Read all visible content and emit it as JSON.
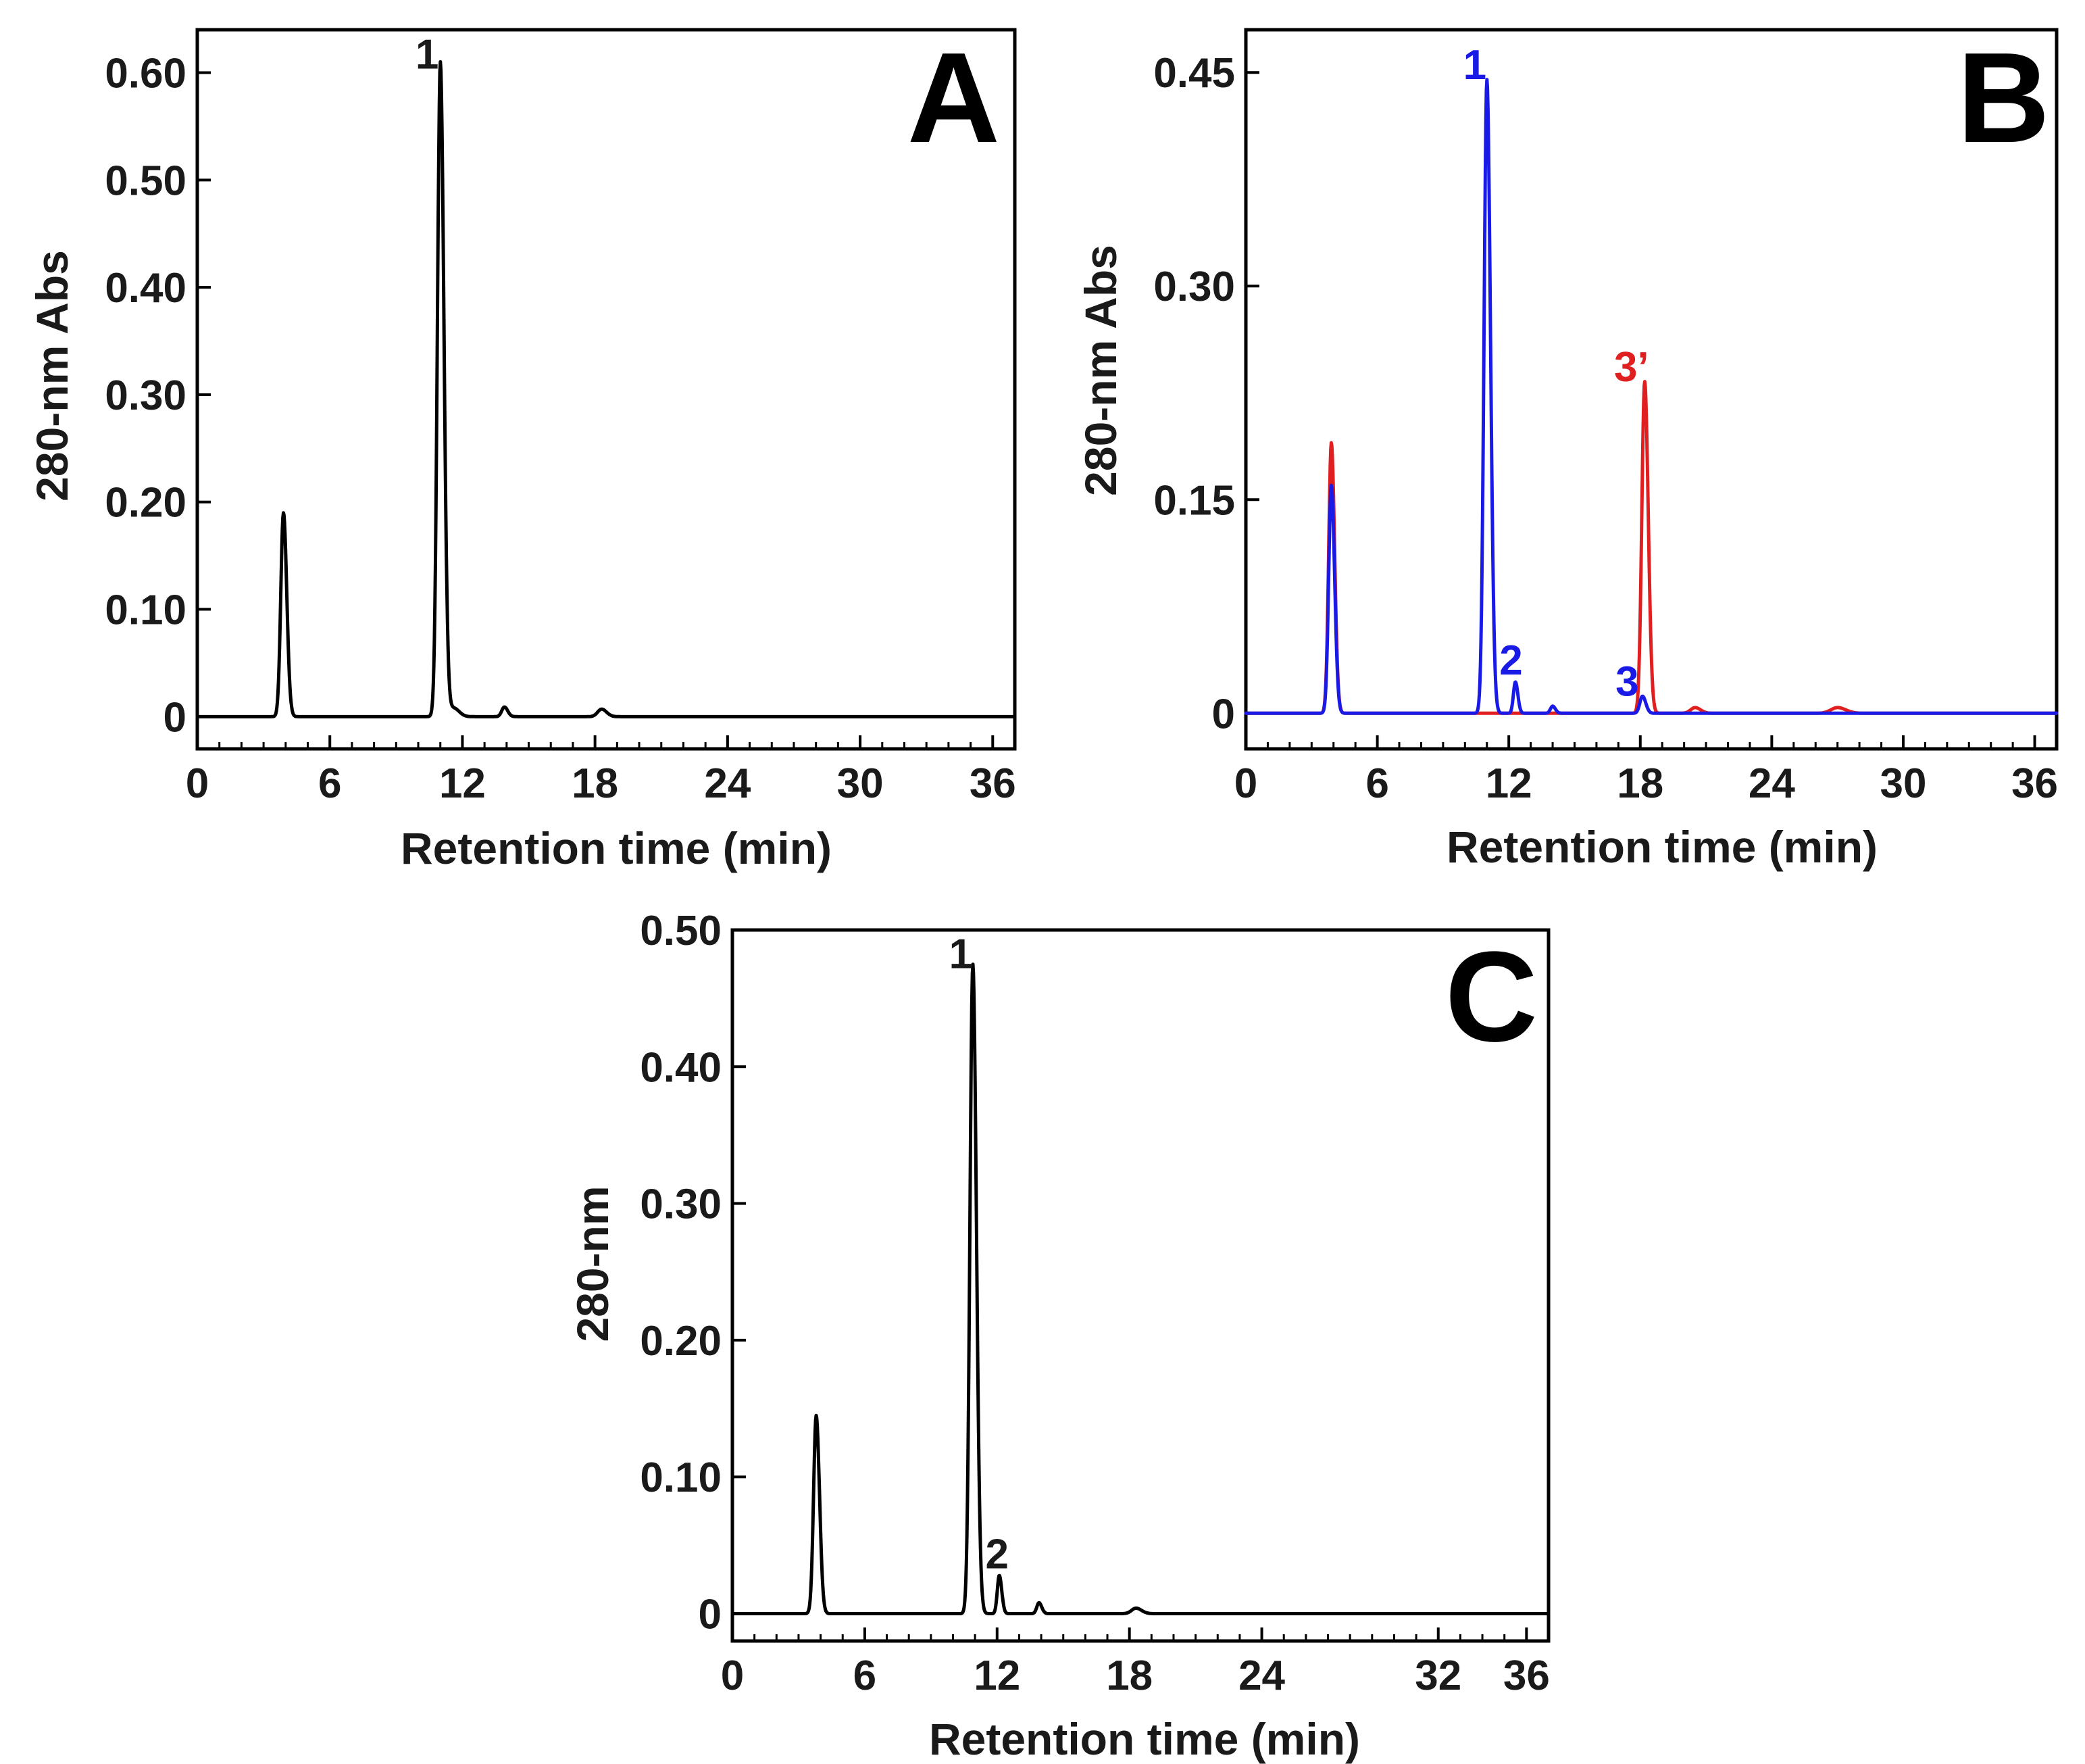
{
  "chart_data": [
    {
      "panel": "A",
      "type": "line",
      "xlabel": "Retention time (min)",
      "ylabel": "280-nm Abs",
      "xlim": [
        0,
        37
      ],
      "ylim": [
        -0.03,
        0.64
      ],
      "xticks": [
        0,
        6,
        12,
        18,
        24,
        30,
        36
      ],
      "xtick_labels": [
        "0",
        "6",
        "12",
        "18",
        "24",
        "30",
        "36"
      ],
      "yticks": [
        0,
        0.1,
        0.2,
        0.3,
        0.4,
        0.5,
        0.6
      ],
      "ytick_labels": [
        "0",
        "0.10",
        "0.20",
        "0.30",
        "0.40",
        "0.50",
        "0.60"
      ],
      "series": [
        {
          "name": "trace",
          "color": "#000000",
          "peaks": [
            {
              "t": 3.9,
              "h": 0.19,
              "w": 0.12
            },
            {
              "t": 11.0,
              "h": 0.61,
              "w": 0.13
            },
            {
              "t": 11.6,
              "h": 0.008,
              "w": 0.2
            },
            {
              "t": 13.9,
              "h": 0.009,
              "w": 0.12
            },
            {
              "t": 18.3,
              "h": 0.007,
              "w": 0.18
            }
          ]
        }
      ],
      "annotations": [
        {
          "text": "1",
          "x": 10.4,
          "y": 0.61,
          "color": "#1a1a1a"
        }
      ]
    },
    {
      "panel": "B",
      "type": "line",
      "xlabel": "Retention time (min)",
      "ylabel": "280-nm Abs",
      "xlim": [
        0,
        37
      ],
      "ylim": [
        -0.025,
        0.48
      ],
      "xticks": [
        0,
        6,
        12,
        18,
        24,
        30,
        36
      ],
      "xtick_labels": [
        "0",
        "6",
        "12",
        "18",
        "24",
        "30",
        "36"
      ],
      "yticks": [
        0,
        0.15,
        0.3,
        0.45
      ],
      "ytick_labels": [
        "0",
        "0.15",
        "0.30",
        "0.45"
      ],
      "series": [
        {
          "name": "red trace",
          "color": "#e02020",
          "peaks": [
            {
              "t": 3.9,
              "h": 0.19,
              "w": 0.12
            },
            {
              "t": 18.2,
              "h": 0.233,
              "w": 0.13
            },
            {
              "t": 20.5,
              "h": 0.004,
              "w": 0.2
            },
            {
              "t": 27.0,
              "h": 0.004,
              "w": 0.3
            }
          ]
        },
        {
          "name": "blue trace",
          "color": "#1a1ae6",
          "peaks": [
            {
              "t": 3.9,
              "h": 0.16,
              "w": 0.12
            },
            {
              "t": 11.0,
              "h": 0.445,
              "w": 0.13
            },
            {
              "t": 12.3,
              "h": 0.022,
              "w": 0.09
            },
            {
              "t": 14.0,
              "h": 0.005,
              "w": 0.1
            },
            {
              "t": 18.1,
              "h": 0.012,
              "w": 0.12
            }
          ]
        }
      ],
      "annotations": [
        {
          "text": "1",
          "x": 10.45,
          "y": 0.45,
          "color": "#1a1ae6"
        },
        {
          "text": "2",
          "x": 12.1,
          "y": 0.032,
          "color": "#1a1ae6"
        },
        {
          "text": "3",
          "x": 17.4,
          "y": 0.017,
          "color": "#1a1ae6"
        },
        {
          "text": "3’",
          "x": 17.6,
          "y": 0.238,
          "color": "#e02020"
        }
      ]
    },
    {
      "panel": "C",
      "type": "line",
      "xlabel": "Retention time (min)",
      "ylabel": "280-nm",
      "xlim": [
        0,
        37
      ],
      "ylim": [
        -0.02,
        0.5
      ],
      "xticks": [
        0,
        6,
        12,
        18,
        24,
        32,
        36
      ],
      "xtick_labels": [
        "0",
        "6",
        "12",
        "18",
        "24",
        "32",
        "36"
      ],
      "yticks": [
        0,
        0.1,
        0.2,
        0.3,
        0.4,
        0.5
      ],
      "ytick_labels": [
        "0",
        "0.10",
        "0.20",
        "0.30",
        "0.40",
        "0.50"
      ],
      "series": [
        {
          "name": "trace",
          "color": "#000000",
          "peaks": [
            {
              "t": 3.8,
              "h": 0.145,
              "w": 0.12
            },
            {
              "t": 10.9,
              "h": 0.475,
              "w": 0.13
            },
            {
              "t": 12.1,
              "h": 0.028,
              "w": 0.09
            },
            {
              "t": 13.9,
              "h": 0.008,
              "w": 0.1
            },
            {
              "t": 18.3,
              "h": 0.004,
              "w": 0.2
            }
          ]
        }
      ],
      "annotations": [
        {
          "text": "1",
          "x": 10.35,
          "y": 0.477,
          "color": "#1a1a1a"
        },
        {
          "text": "2",
          "x": 12.0,
          "y": 0.038,
          "color": "#1a1a1a"
        }
      ]
    }
  ],
  "panel_labels": [
    "A",
    "B",
    "C"
  ]
}
